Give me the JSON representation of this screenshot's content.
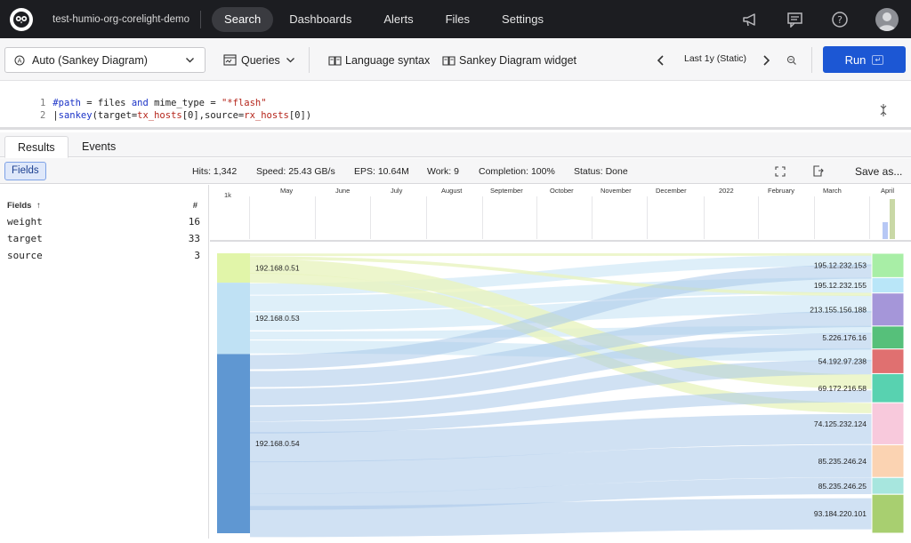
{
  "topnav": {
    "org": "test-humio-org-corelight-demo",
    "items": [
      "Search",
      "Dashboards",
      "Alerts",
      "Files",
      "Settings"
    ],
    "active": "Search"
  },
  "toolbar": {
    "widget": "Auto (Sankey Diagram)",
    "queries": "Queries",
    "language_syntax": "Language syntax",
    "widget_help": "Sankey Diagram widget",
    "time_range": "Last 1y (Static)",
    "run": "Run",
    "run_shortcut": "↵"
  },
  "editor": {
    "lines": [
      {
        "num": "1",
        "text": "#path = files and mime_type = \"*flash\""
      },
      {
        "num": "2",
        "text": "|sankey(target=tx_hosts[0],source=rx_hosts[0])"
      }
    ]
  },
  "tabs": [
    "Results",
    "Events"
  ],
  "stats": {
    "fields_button": "Fields",
    "hits": "Hits: 1,342",
    "speed": "Speed: 25.43 GB/s",
    "eps": "EPS: 10.64M",
    "work": "Work: 9",
    "completion": "Completion: 100%",
    "status": "Status: Done",
    "save_as": "Save as..."
  },
  "fields_panel": {
    "header": "Fields",
    "sort_arrow": "↑",
    "count_header": "#",
    "items": [
      {
        "name": "weight",
        "count": "16"
      },
      {
        "name": "target",
        "count": "33"
      },
      {
        "name": "source",
        "count": "3"
      }
    ]
  },
  "timeline": {
    "y_label": "1k",
    "months": [
      "May",
      "June",
      "July",
      "August",
      "September",
      "October",
      "November",
      "December",
      "2022",
      "February",
      "March",
      "April"
    ]
  },
  "chart_data": {
    "type": "sankey",
    "sources": [
      {
        "label": "192.168.0.51",
        "color": "#e1f5a9"
      },
      {
        "label": "192.168.0.53",
        "color": "#bfe1f4"
      },
      {
        "label": "192.168.0.54",
        "color": "#5f97d2"
      }
    ],
    "targets": [
      {
        "label": "195.12.232.153",
        "color": "#a8eea6"
      },
      {
        "label": "195.12.232.155",
        "color": "#b9e6f8"
      },
      {
        "label": "213.155.156.188",
        "color": "#a596d9"
      },
      {
        "label": "5.226.176.16",
        "color": "#56c07a"
      },
      {
        "label": "54.192.97.238",
        "color": "#e07070"
      },
      {
        "label": "69.172.216.58",
        "color": "#58d2b0"
      },
      {
        "label": "74.125.232.124",
        "color": "#f8c9dc"
      },
      {
        "label": "85.235.246.24",
        "color": "#fbd3b2"
      },
      {
        "label": "85.235.246.25",
        "color": "#a7e6de"
      },
      {
        "label": "93.184.220.101",
        "color": "#a8cf70"
      }
    ]
  }
}
